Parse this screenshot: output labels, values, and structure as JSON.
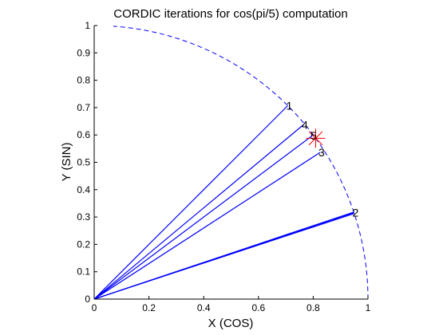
{
  "chart_data": {
    "type": "line",
    "title": "CORDIC iterations for cos(pi/5) computation",
    "xlabel": "X (COS)",
    "ylabel": "Y (SIN)",
    "xlim": [
      0,
      1
    ],
    "ylim": [
      0,
      1
    ],
    "xticks": [
      "0",
      "0.2",
      "0.4",
      "0.6",
      "0.8",
      "1"
    ],
    "yticks": [
      "0",
      "0.1",
      "0.2",
      "0.3",
      "0.4",
      "0.5",
      "0.6",
      "0.7",
      "0.8",
      "0.9",
      "1"
    ],
    "grid": false,
    "line_color": "#0000ff",
    "marker_color": "#ff0000",
    "unit_arc": {
      "style": "dashed",
      "angle_range_deg": [
        0,
        86
      ]
    },
    "iterations": [
      {
        "label": "1",
        "x": 0.707,
        "y": 0.707
      },
      {
        "label": "2",
        "x": 0.949,
        "y": 0.316
      },
      {
        "label": "3",
        "x": 0.825,
        "y": 0.536
      },
      {
        "label": "4",
        "x": 0.764,
        "y": 0.637
      },
      {
        "label": "5",
        "x": 0.796,
        "y": 0.597
      },
      {
        "label": "",
        "x": 0.948,
        "y": 0.318
      },
      {
        "label": "",
        "x": 0.95,
        "y": 0.313
      }
    ],
    "target": {
      "x": 0.809,
      "y": 0.588
    }
  }
}
